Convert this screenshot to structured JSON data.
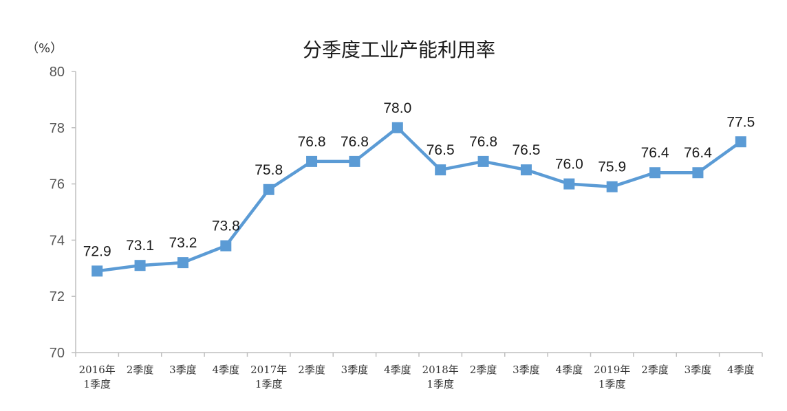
{
  "chart_data": {
    "type": "line",
    "title": "分季度工业产能利用率",
    "ylabel": "（%）",
    "xlabel": "",
    "ylim": [
      70,
      80
    ],
    "yticks": [
      70,
      72,
      74,
      76,
      78,
      80
    ],
    "grid": false,
    "categories": [
      [
        "2016年",
        "1季度"
      ],
      [
        "2季度"
      ],
      [
        "3季度"
      ],
      [
        "4季度"
      ],
      [
        "2017年",
        "1季度"
      ],
      [
        "2季度"
      ],
      [
        "3季度"
      ],
      [
        "4季度"
      ],
      [
        "2018年",
        "1季度"
      ],
      [
        "2季度"
      ],
      [
        "3季度"
      ],
      [
        "4季度"
      ],
      [
        "2019年",
        "1季度"
      ],
      [
        "2季度"
      ],
      [
        "3季度"
      ],
      [
        "4季度"
      ]
    ],
    "values": [
      72.9,
      73.1,
      73.2,
      73.8,
      75.8,
      76.8,
      76.8,
      78.0,
      76.5,
      76.8,
      76.5,
      76.0,
      75.9,
      76.4,
      76.4,
      77.5
    ],
    "value_labels": [
      "72.9",
      "73.1",
      "73.2",
      "73.8",
      "75.8",
      "76.8",
      "76.8",
      "78.0",
      "76.5",
      "76.8",
      "76.5",
      "76.0",
      "75.9",
      "76.4",
      "76.4",
      "77.5"
    ],
    "line_color": "#5b9bd5",
    "marker": "square"
  }
}
